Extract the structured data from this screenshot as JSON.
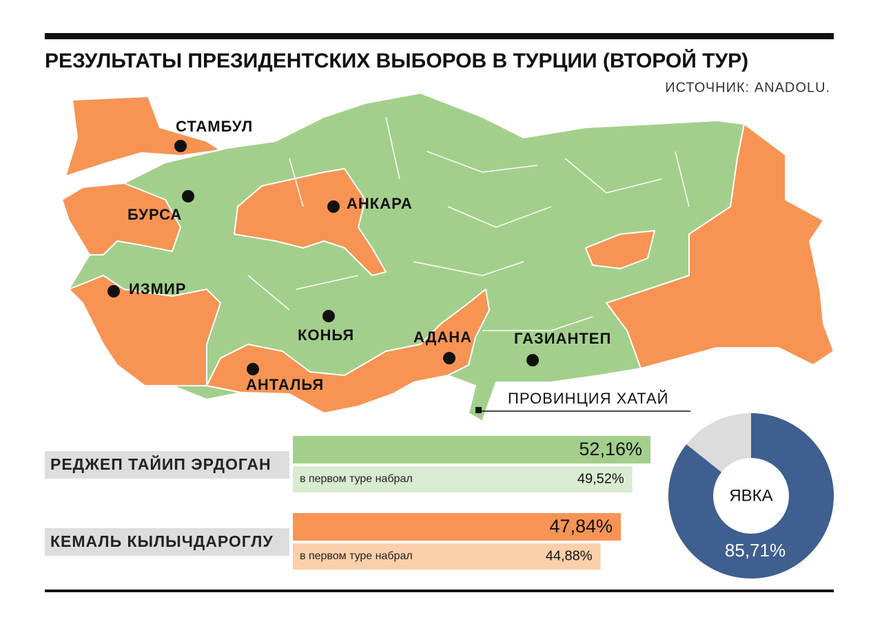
{
  "header": {
    "title": "РЕЗУЛЬТАТЫ ПРЕЗИДЕНТСКИХ ВЫБОРОВ В ТУРЦИИ (ВТОРОЙ ТУР)",
    "source": "ИСТОЧНИК: ANADOLU."
  },
  "map": {
    "cities": [
      "СТАМБУЛ",
      "БУРСА",
      "АНКАРА",
      "ИЗМИР",
      "КОНЬЯ",
      "АДАНА",
      "ГАЗИАНТЕП",
      "АНТАЛЬЯ"
    ],
    "callout": "ПРОВИНЦИЯ ХАТАЙ"
  },
  "results": {
    "candidates": [
      {
        "name": "РЕДЖЕП ТАЙИП ЭРДОГАН",
        "color": "#a3cf8c",
        "value": 52.16,
        "value_label": "52,16%",
        "first_round": {
          "text": "в первом туре набрал",
          "color": "#d9ebd0",
          "value": 49.52,
          "value_label": "49,52%"
        }
      },
      {
        "name": "КЕМАЛЬ КЫЛЫЧДАРОГЛУ",
        "color": "#f79454",
        "value": 47.84,
        "value_label": "47,84%",
        "first_round": {
          "text": "в первом туре набрал",
          "color": "#fbcfaa",
          "value": 44.88,
          "value_label": "44,88%"
        }
      }
    ]
  },
  "turnout": {
    "label": "ЯВКА",
    "value": 85.71,
    "value_label": "85,71%",
    "color": "#3e5f8f"
  }
}
